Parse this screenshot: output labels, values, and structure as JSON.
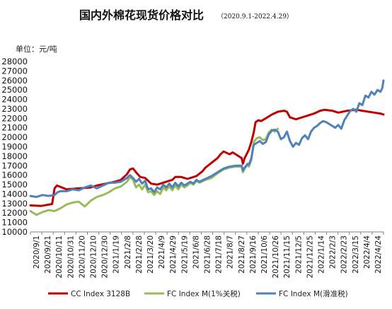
{
  "chart_data": {
    "type": "line",
    "title": "国内外棉花现货价格对比",
    "subtitle": "（2020.9.1-2022.4.29）",
    "unit_label": "单位：元/吨",
    "ylim": [
      10000,
      28000
    ],
    "y_ticks": [
      "10000",
      "11000",
      "12000",
      "13000",
      "14000",
      "15000",
      "16000",
      "17000",
      "18000",
      "19000",
      "20000",
      "21000",
      "22000",
      "23000",
      "24000",
      "25000",
      "26000",
      "27000",
      "28000"
    ],
    "x_tick_labels": [
      "2020/9/1",
      "2020/9/21",
      "2020/10/11",
      "2020/10/31",
      "2020/11/20",
      "2020/12/10",
      "2020/12/30",
      "2021/1/19",
      "2021/2/8",
      "2021/2/28",
      "2021/3/20",
      "2021/4/9",
      "2021/4/29",
      "2021/5/19",
      "2021/6/8",
      "2021/6/28",
      "2021/7/18",
      "2021/8/7",
      "2021/8/27",
      "2021/9/16",
      "2021/10/6",
      "2021/10/26",
      "2021/11/15",
      "2021/12/5",
      "2021/12/25",
      "2022/1/14",
      "2022/2/3",
      "2022/2/23",
      "2022/3/15",
      "2022/4/4",
      "2022/4/24"
    ],
    "grid": false,
    "legend_position": "bottom",
    "series": [
      {
        "name": "CC Index 3128B",
        "color": "#c00000",
        "points": [
          [
            0,
            12800
          ],
          [
            18,
            12750
          ],
          [
            36,
            12950
          ],
          [
            40,
            14600
          ],
          [
            44,
            14900
          ],
          [
            60,
            14500
          ],
          [
            80,
            14600
          ],
          [
            100,
            14700
          ],
          [
            110,
            14900
          ],
          [
            125,
            15100
          ],
          [
            140,
            15300
          ],
          [
            150,
            15500
          ],
          [
            160,
            16100
          ],
          [
            165,
            16600
          ],
          [
            170,
            16700
          ],
          [
            175,
            16300
          ],
          [
            182,
            15800
          ],
          [
            190,
            15700
          ],
          [
            200,
            15100
          ],
          [
            210,
            15000
          ],
          [
            220,
            15200
          ],
          [
            230,
            15400
          ],
          [
            235,
            15500
          ],
          [
            240,
            15800
          ],
          [
            250,
            15800
          ],
          [
            260,
            15600
          ],
          [
            275,
            15900
          ],
          [
            285,
            16400
          ],
          [
            290,
            16800
          ],
          [
            300,
            17300
          ],
          [
            310,
            17800
          ],
          [
            315,
            18200
          ],
          [
            320,
            18500
          ],
          [
            330,
            18200
          ],
          [
            335,
            18400
          ],
          [
            345,
            18000
          ],
          [
            350,
            17800
          ],
          [
            352,
            17200
          ],
          [
            355,
            17800
          ],
          [
            362,
            18700
          ],
          [
            366,
            19500
          ],
          [
            370,
            20500
          ],
          [
            373,
            21600
          ],
          [
            378,
            21800
          ],
          [
            382,
            21700
          ],
          [
            390,
            22000
          ],
          [
            400,
            22400
          ],
          [
            410,
            22700
          ],
          [
            420,
            22800
          ],
          [
            425,
            22700
          ],
          [
            430,
            22100
          ],
          [
            440,
            21900
          ],
          [
            450,
            22100
          ],
          [
            460,
            22300
          ],
          [
            470,
            22500
          ],
          [
            480,
            22800
          ],
          [
            487,
            22900
          ],
          [
            500,
            22800
          ],
          [
            510,
            22600
          ],
          [
            525,
            22800
          ],
          [
            540,
            22900
          ],
          [
            550,
            22800
          ],
          [
            560,
            22700
          ],
          [
            570,
            22600
          ],
          [
            580,
            22500
          ],
          [
            585,
            22400
          ]
        ]
      },
      {
        "name": "FC Index M(1%关税)",
        "color": "#9bbb59",
        "points": [
          [
            0,
            12200
          ],
          [
            10,
            11800
          ],
          [
            20,
            12100
          ],
          [
            30,
            12300
          ],
          [
            40,
            12200
          ],
          [
            50,
            12500
          ],
          [
            60,
            12900
          ],
          [
            70,
            13100
          ],
          [
            80,
            13200
          ],
          [
            90,
            12700
          ],
          [
            100,
            13300
          ],
          [
            110,
            13700
          ],
          [
            120,
            13900
          ],
          [
            130,
            14200
          ],
          [
            140,
            14600
          ],
          [
            150,
            14800
          ],
          [
            160,
            15300
          ],
          [
            165,
            15800
          ],
          [
            170,
            15500
          ],
          [
            175,
            14700
          ],
          [
            180,
            15000
          ],
          [
            185,
            14500
          ],
          [
            190,
            15000
          ],
          [
            195,
            14200
          ],
          [
            200,
            14300
          ],
          [
            205,
            13900
          ],
          [
            210,
            14300
          ],
          [
            215,
            14000
          ],
          [
            220,
            14700
          ],
          [
            225,
            14400
          ],
          [
            230,
            14800
          ],
          [
            235,
            14400
          ],
          [
            240,
            14900
          ],
          [
            245,
            14500
          ],
          [
            250,
            15000
          ],
          [
            255,
            14700
          ],
          [
            260,
            14900
          ],
          [
            265,
            15200
          ],
          [
            270,
            15000
          ],
          [
            275,
            15400
          ],
          [
            280,
            15200
          ],
          [
            290,
            15500
          ],
          [
            300,
            15700
          ],
          [
            310,
            16200
          ],
          [
            320,
            16600
          ],
          [
            330,
            16800
          ],
          [
            340,
            16900
          ],
          [
            350,
            16900
          ],
          [
            352,
            16300
          ],
          [
            355,
            16700
          ],
          [
            360,
            17100
          ],
          [
            362,
            16900
          ],
          [
            366,
            17600
          ],
          [
            370,
            19500
          ],
          [
            375,
            19900
          ],
          [
            380,
            20000
          ],
          [
            385,
            19700
          ],
          [
            390,
            19800
          ],
          [
            395,
            20500
          ],
          [
            400,
            20800
          ],
          [
            405,
            20600
          ],
          [
            410,
            20900
          ]
        ]
      },
      {
        "name": "FC Index M(滑准税)",
        "color": "#4f81bd",
        "points": [
          [
            0,
            13800
          ],
          [
            10,
            13700
          ],
          [
            20,
            13900
          ],
          [
            30,
            13800
          ],
          [
            40,
            13900
          ],
          [
            45,
            14200
          ],
          [
            50,
            14300
          ],
          [
            60,
            14300
          ],
          [
            70,
            14500
          ],
          [
            80,
            14400
          ],
          [
            90,
            14700
          ],
          [
            100,
            14900
          ],
          [
            110,
            14600
          ],
          [
            120,
            14900
          ],
          [
            130,
            15200
          ],
          [
            140,
            15200
          ],
          [
            150,
            15300
          ],
          [
            160,
            15700
          ],
          [
            165,
            16000
          ],
          [
            170,
            15700
          ],
          [
            175,
            15300
          ],
          [
            180,
            15600
          ],
          [
            185,
            15100
          ],
          [
            190,
            15400
          ],
          [
            195,
            14500
          ],
          [
            200,
            14600
          ],
          [
            205,
            14200
          ],
          [
            210,
            14700
          ],
          [
            215,
            14500
          ],
          [
            220,
            15000
          ],
          [
            225,
            14700
          ],
          [
            230,
            15100
          ],
          [
            235,
            14700
          ],
          [
            240,
            15200
          ],
          [
            245,
            14800
          ],
          [
            250,
            15200
          ],
          [
            255,
            14900
          ],
          [
            260,
            15100
          ],
          [
            265,
            15300
          ],
          [
            270,
            15100
          ],
          [
            275,
            15500
          ],
          [
            280,
            15300
          ],
          [
            290,
            15600
          ],
          [
            300,
            15900
          ],
          [
            310,
            16300
          ],
          [
            320,
            16700
          ],
          [
            330,
            16900
          ],
          [
            340,
            17000
          ],
          [
            350,
            17000
          ],
          [
            352,
            16500
          ],
          [
            355,
            16800
          ],
          [
            360,
            17200
          ],
          [
            362,
            17100
          ],
          [
            366,
            17800
          ],
          [
            370,
            19200
          ],
          [
            375,
            19400
          ],
          [
            380,
            19600
          ],
          [
            385,
            19300
          ],
          [
            390,
            19500
          ],
          [
            395,
            20300
          ],
          [
            400,
            20700
          ],
          [
            405,
            20800
          ],
          [
            410,
            20600
          ],
          [
            415,
            19800
          ],
          [
            420,
            20000
          ],
          [
            425,
            20600
          ],
          [
            430,
            19600
          ],
          [
            435,
            19000
          ],
          [
            440,
            19400
          ],
          [
            445,
            19200
          ],
          [
            450,
            19900
          ],
          [
            455,
            20200
          ],
          [
            460,
            19800
          ],
          [
            465,
            20600
          ],
          [
            470,
            21000
          ],
          [
            475,
            21200
          ],
          [
            480,
            21500
          ],
          [
            485,
            21700
          ],
          [
            490,
            21600
          ],
          [
            495,
            21400
          ],
          [
            500,
            21200
          ],
          [
            505,
            21000
          ],
          [
            510,
            21300
          ],
          [
            515,
            20900
          ],
          [
            520,
            21800
          ],
          [
            525,
            22300
          ],
          [
            530,
            22800
          ],
          [
            535,
            23000
          ],
          [
            540,
            22700
          ],
          [
            545,
            23600
          ],
          [
            550,
            23400
          ],
          [
            555,
            24400
          ],
          [
            560,
            24200
          ],
          [
            565,
            24800
          ],
          [
            570,
            24500
          ],
          [
            575,
            25000
          ],
          [
            580,
            24800
          ],
          [
            583,
            25200
          ],
          [
            585,
            26000
          ]
        ]
      }
    ]
  }
}
